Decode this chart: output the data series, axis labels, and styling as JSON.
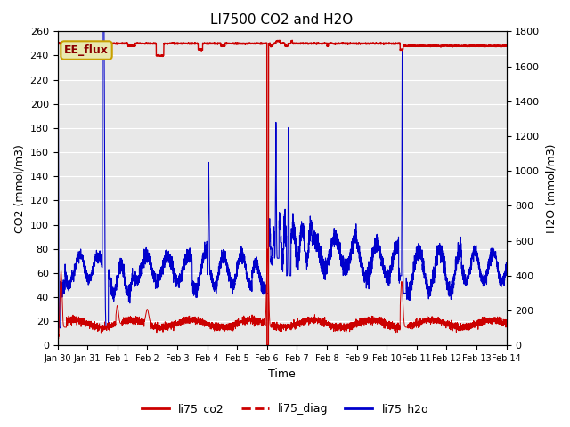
{
  "title": "LI7500 CO2 and H2O",
  "xlabel": "Time",
  "ylabel_left": "CO2 (mmol/m3)",
  "ylabel_right": "H2O (mmol/m3)",
  "ylim_left": [
    0,
    260
  ],
  "ylim_right": [
    0,
    1800
  ],
  "yticks_left": [
    0,
    20,
    40,
    60,
    80,
    100,
    120,
    140,
    160,
    180,
    200,
    220,
    240,
    260
  ],
  "yticks_right": [
    0,
    200,
    400,
    600,
    800,
    1000,
    1200,
    1400,
    1600,
    1800
  ],
  "xtick_labels": [
    "Jan 30",
    "Jan 31",
    "Feb 1",
    "Feb 2",
    "Feb 3",
    "Feb 4",
    "Feb 5",
    "Feb 6",
    "Feb 7",
    "Feb 8",
    "Feb 9",
    "Feb 10",
    "Feb 11",
    "Feb 12",
    "Feb 13",
    "Feb 14"
  ],
  "background_color": "#e8e8e8",
  "annotation_text": "EE_flux",
  "annotation_bg": "#e8e8b0",
  "annotation_border": "#c8a000",
  "co2_color": "#cc0000",
  "diag_color": "#cc0000",
  "h2o_color": "#0000cc",
  "legend_labels": [
    "li75_co2",
    "li75_diag",
    "li75_h2o"
  ],
  "grid_color": "#ffffff",
  "title_fontsize": 11,
  "axis_fontsize": 9,
  "tick_fontsize": 8,
  "legend_fontsize": 9
}
